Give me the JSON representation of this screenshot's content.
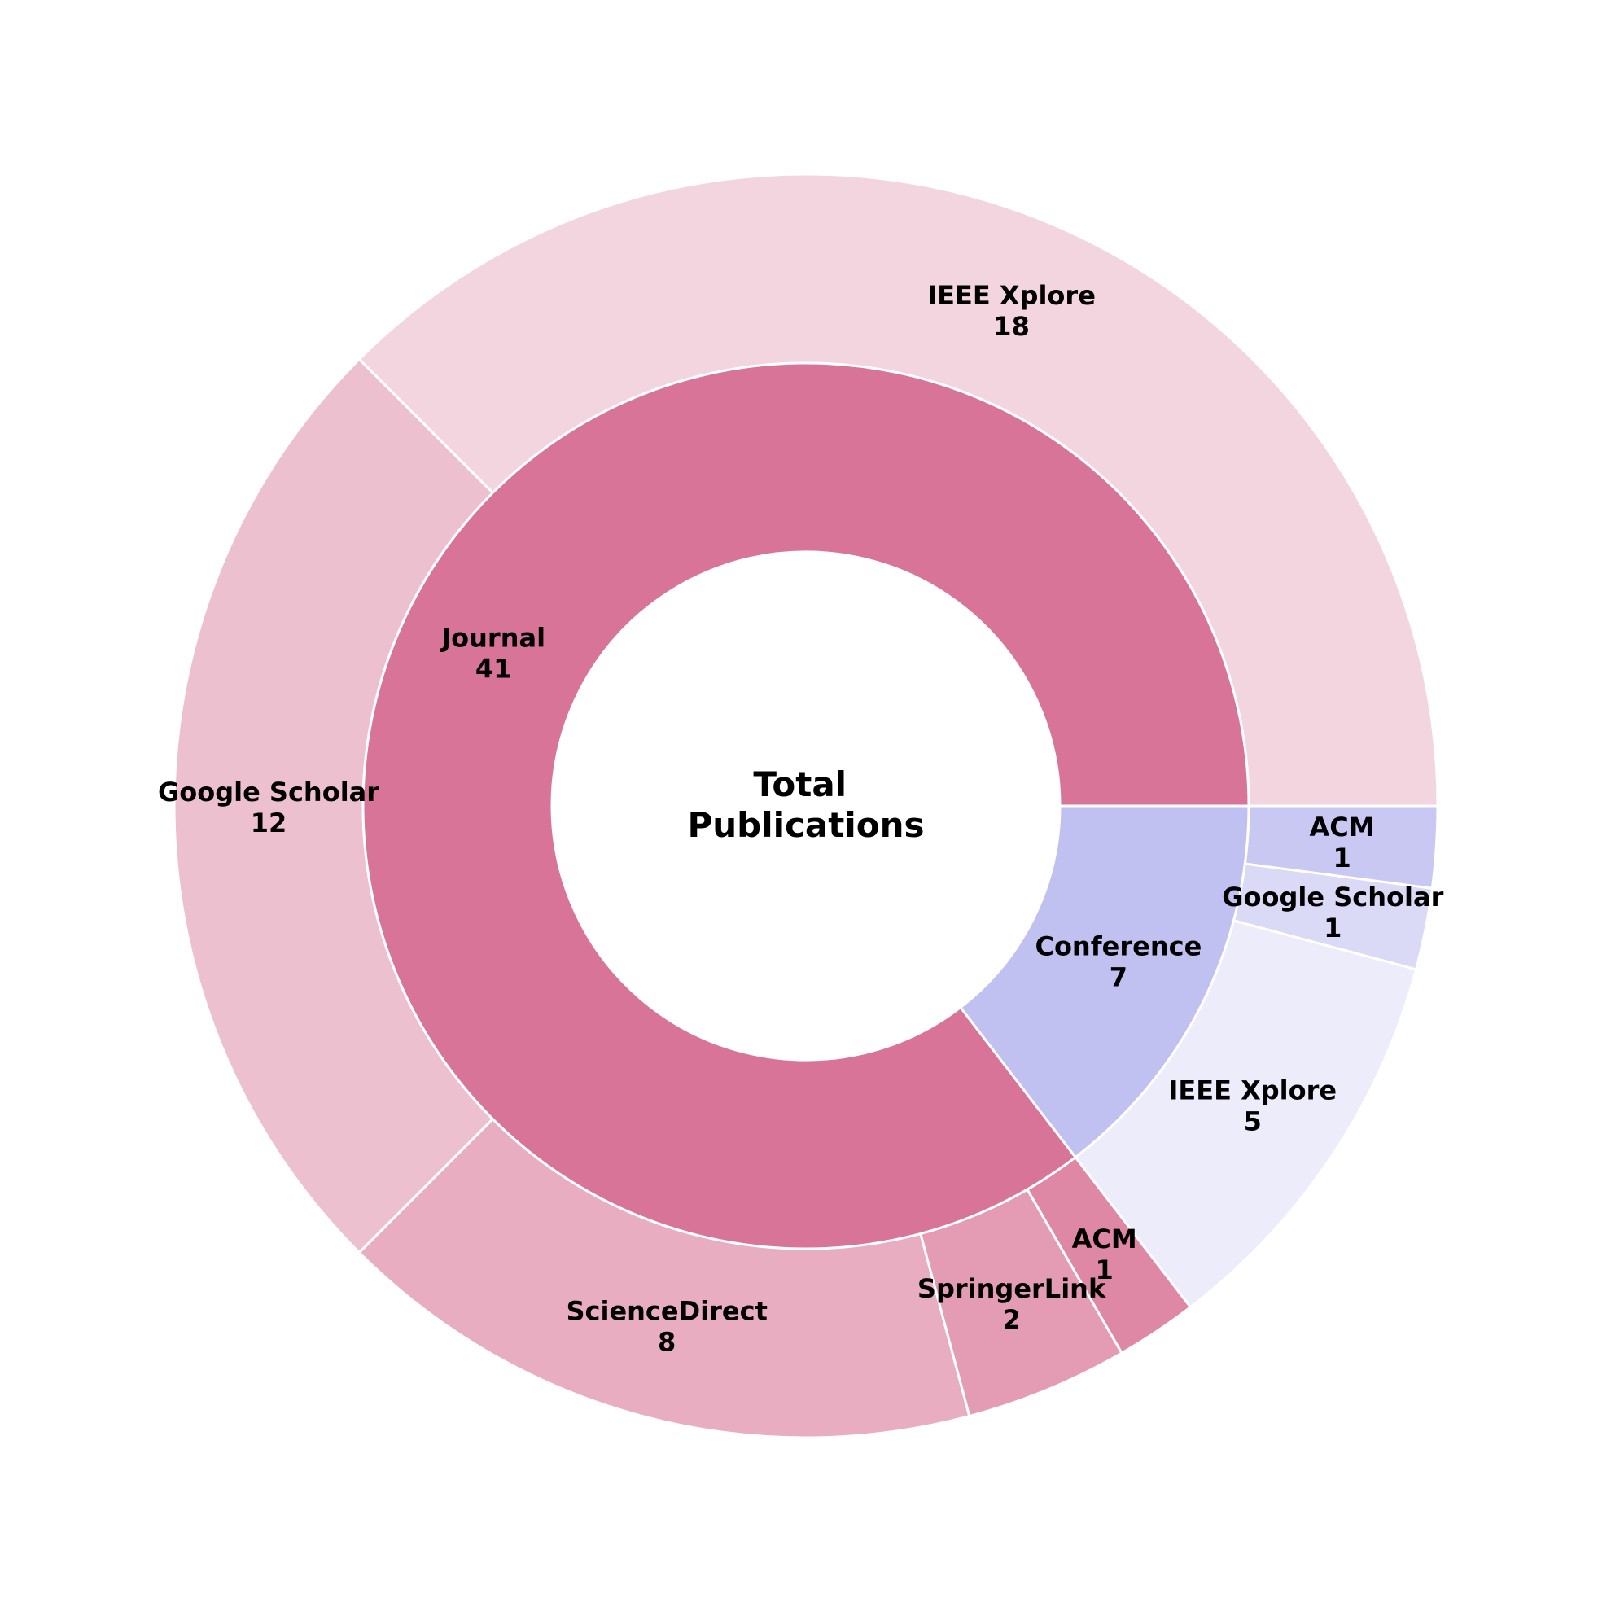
{
  "chart_data": {
    "type": "sunburst",
    "center_label": [
      "Total",
      "Publications"
    ],
    "inner": [
      {
        "name": "Journal",
        "value": 41,
        "color": "#d97499"
      },
      {
        "name": "Conference",
        "value": 7,
        "color": "#c0c1f0"
      }
    ],
    "outer": [
      {
        "parent": "Journal",
        "name": "IEEE Xplore",
        "value": 18,
        "color": "#f3d5df"
      },
      {
        "parent": "Journal",
        "name": "Google Scholar",
        "value": 12,
        "color": "#edc0cf"
      },
      {
        "parent": "Journal",
        "name": "ScienceDirect",
        "value": 8,
        "color": "#e8adc1"
      },
      {
        "parent": "Journal",
        "name": "SpringerLink",
        "value": 2,
        "color": "#e49bb4"
      },
      {
        "parent": "Journal",
        "name": "ACM",
        "value": 1,
        "color": "#de88a6"
      },
      {
        "parent": "Conference",
        "name": "IEEE Xplore",
        "value": 5,
        "color": "#edecfa"
      },
      {
        "parent": "Conference",
        "name": "Google Scholar",
        "value": 1,
        "color": "#dad9f6"
      },
      {
        "parent": "Conference",
        "name": "ACM",
        "value": 1,
        "color": "#c8c8f2"
      }
    ]
  }
}
